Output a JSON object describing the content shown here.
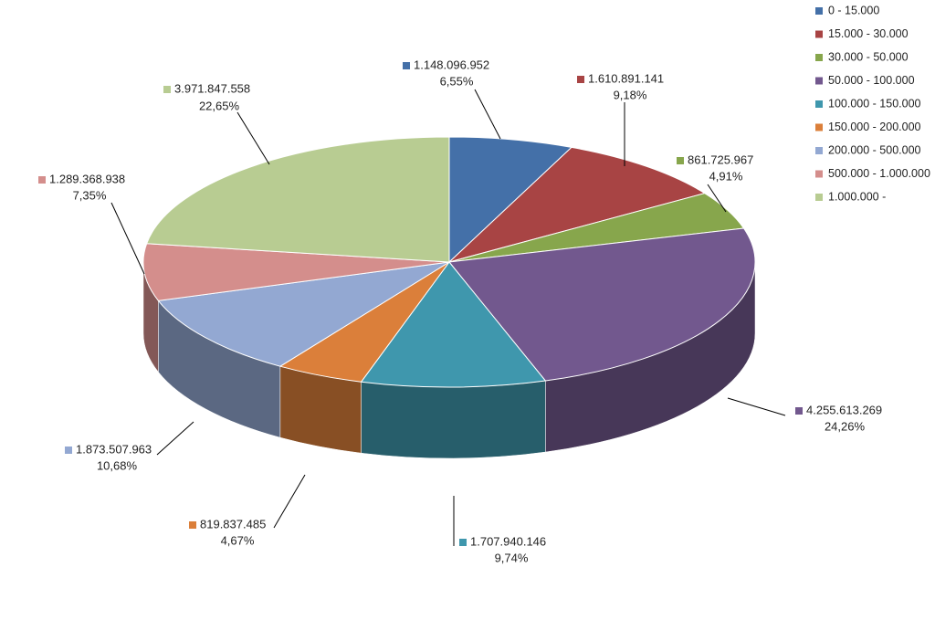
{
  "chart_data": {
    "type": "pie3d",
    "categories": [
      "0 - 15.000",
      "15.000 - 30.000",
      "30.000 - 50.000",
      "50.000 - 100.000",
      "100.000 - 150.000",
      "150.000 - 200.000",
      "200.000 - 500.000",
      "500.000 - 1.000.000",
      "1.000.000 -"
    ],
    "values": [
      1148096952,
      1610891141,
      861725967,
      4255613269,
      1707940146,
      819837485,
      1873507963,
      1289368938,
      3971847558
    ],
    "value_labels": [
      "1.148.096.952",
      "1.610.891.141",
      "861.725.967",
      "4.255.613.269",
      "1.707.940.146",
      "819.837.485",
      "1.873.507.963",
      "1.289.368.938",
      "3.971.847.558"
    ],
    "percent_labels": [
      "6,55%",
      "9,18%",
      "4,91%",
      "24,26%",
      "9,74%",
      "4,67%",
      "10,68%",
      "7,35%",
      "22,65%"
    ],
    "colors": [
      "#4470a8",
      "#a84444",
      "#87a64c",
      "#72588e",
      "#3f97ad",
      "#db7f3a",
      "#93a8d2",
      "#d48e8c",
      "#b8cc92"
    ],
    "legend": "top-right"
  }
}
